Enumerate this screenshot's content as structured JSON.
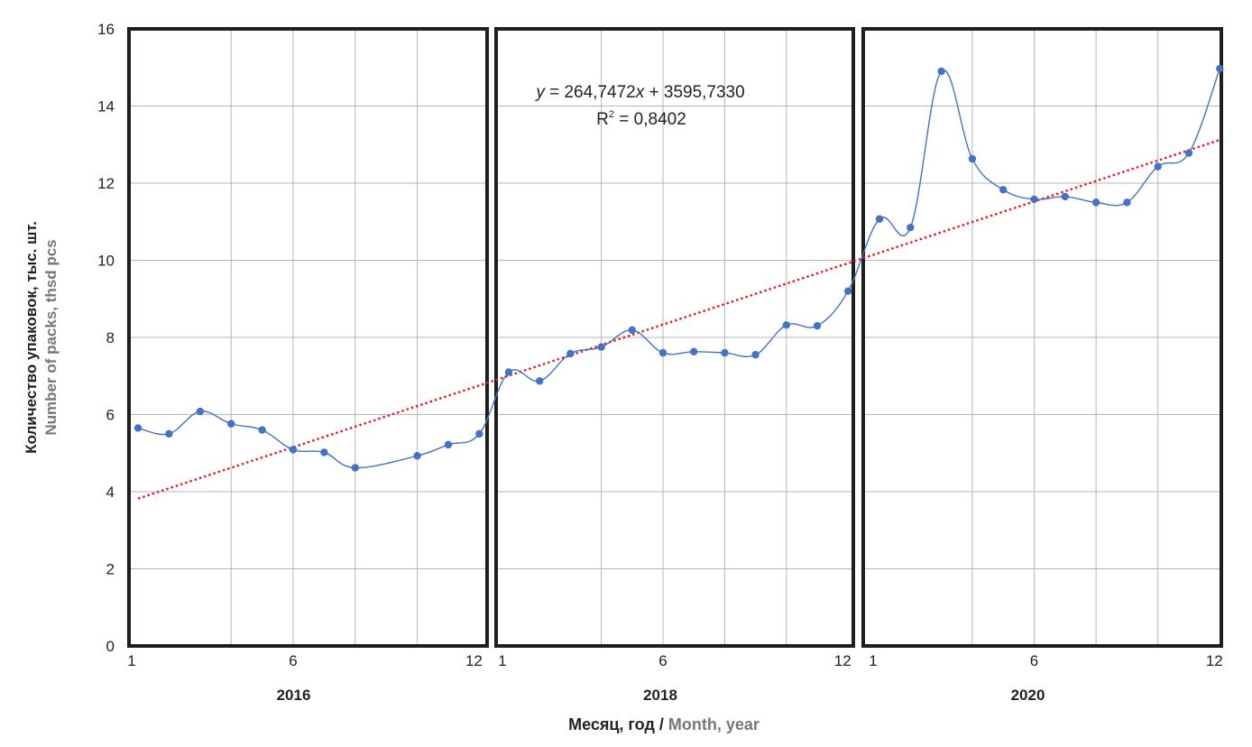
{
  "chart_data": {
    "type": "line",
    "y_axis": {
      "label_ru": "Количество упаковок, тыс. шт.",
      "label_en": "Number of packs, thsd pcs",
      "ylim": [
        0,
        16
      ],
      "ticks": [
        "0",
        "2",
        "4",
        "6",
        "8",
        "10",
        "12",
        "14",
        "16"
      ]
    },
    "x_axis": {
      "label_ru": "Месяц, год",
      "separator": " / ",
      "label_en": "Month, year",
      "month_ticks": [
        "1",
        "6",
        "12"
      ]
    },
    "grid": true,
    "panels": [
      {
        "year": "2016",
        "months": [
          1,
          2,
          3,
          4,
          5,
          6,
          7,
          8,
          9,
          10,
          11,
          12
        ],
        "values": [
          5.65,
          5.5,
          6.08,
          5.76,
          5.6,
          5.09,
          5.02,
          4.62,
          null,
          4.93,
          5.22,
          5.5
        ]
      },
      {
        "year": "2018",
        "months": [
          1,
          2,
          3,
          4,
          5,
          6,
          7,
          8,
          9,
          10,
          11,
          12
        ],
        "values": [
          7.1,
          6.87,
          7.58,
          7.75,
          8.19,
          7.6,
          7.63,
          7.6,
          7.55,
          8.32,
          8.3,
          9.2
        ]
      },
      {
        "year": "2020",
        "months": [
          1,
          2,
          3,
          4,
          5,
          6,
          7,
          8,
          9,
          10,
          11,
          12
        ],
        "values": [
          11.07,
          10.85,
          14.9,
          12.63,
          11.83,
          11.58,
          11.65,
          11.5,
          11.5,
          12.43,
          12.78,
          14.97
        ]
      }
    ],
    "series_color": "#4472C4",
    "trendline": {
      "color": "#E02020",
      "style": "dotted",
      "start_value": 3.82,
      "end_value": 13.12,
      "equation_prefix": "y",
      "equation_rest": " = 264,7472",
      "equation_var": "x",
      "equation_tail": " + 3595,7330",
      "r2_base": "R",
      "r2_sup": "2",
      "r2_tail": " = 0,8402"
    }
  }
}
